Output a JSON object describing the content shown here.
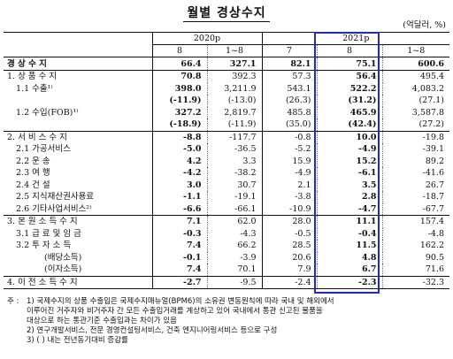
{
  "title": "월별 경상수지",
  "unit": "(억달러, %)",
  "header": {
    "year_2020": "2020p",
    "year_2021": "2021p",
    "months": [
      "8",
      "1~8",
      "7",
      "8",
      "1~8"
    ]
  },
  "rows": [
    {
      "label": "경 상 수 지",
      "values": [
        "66.4",
        "327.1",
        "82.1",
        "75.1",
        "600.6"
      ],
      "bold": true
    },
    {
      "label": "1. 상 품 수 지",
      "values": [
        "70.8",
        "392.3",
        "57.3",
        "56.4",
        "495.4"
      ]
    },
    {
      "label": "1.1 수출¹⁾",
      "values": [
        "398.0",
        "3,211.9",
        "543.1",
        "522.2",
        "4,083.2"
      ]
    },
    {
      "label": "",
      "values": [
        "(-11.9)",
        "(-13.0)",
        "(26.3)",
        "(31.2)",
        "(27.1)"
      ]
    },
    {
      "label": "1.2 수입(FOB)¹⁾",
      "values": [
        "327.2",
        "2,819.7",
        "485.8",
        "465.9",
        "3,587.8"
      ]
    },
    {
      "label": "",
      "values": [
        "(-18.9)",
        "(-11.9)",
        "(35.0)",
        "(42.4)",
        "(27.2)"
      ]
    },
    {
      "label": "2. 서 비 스 수 지",
      "values": [
        "-8.8",
        "-117.7",
        "-0.8",
        "10.0",
        "-19.8"
      ],
      "sec": true
    },
    {
      "label": "2.1 가공서비스",
      "values": [
        "-5.0",
        "-36.5",
        "-5.2",
        "-4.9",
        "-39.1"
      ]
    },
    {
      "label": "2.2 운        송",
      "values": [
        "4.2",
        "3.3",
        "15.9",
        "15.2",
        "89.2"
      ]
    },
    {
      "label": "2.3 여        행",
      "values": [
        "-4.2",
        "-38.2",
        "-4.9",
        "-6.1",
        "-41.6"
      ]
    },
    {
      "label": "2.4 건        설",
      "values": [
        "3.0",
        "30.7",
        "2.1",
        "3.5",
        "26.7"
      ]
    },
    {
      "label": "2.5 지식재산권사용료",
      "values": [
        "-1.1",
        "-19.1",
        "-3.8",
        "2.8",
        "-18.7"
      ]
    },
    {
      "label": "2.6 기타사업서비스²⁾",
      "values": [
        "-6.6",
        "-66.1",
        "-10.9",
        "-4.7",
        "-67.7"
      ]
    },
    {
      "label": "3. 본 원 소 득 수 지",
      "values": [
        "7.1",
        "62.0",
        "28.0",
        "11.1",
        "157.4"
      ],
      "sec": true
    },
    {
      "label": "3.1 급 료 및 임 금",
      "values": [
        "-0.3",
        "-4.3",
        "-0.5",
        "-0.4",
        "-4.8"
      ]
    },
    {
      "label": "3.2 투  자  소  득",
      "values": [
        "7.4",
        "66.2",
        "28.5",
        "11.5",
        "162.2"
      ]
    },
    {
      "label": "(배당소득)",
      "values": [
        "-0.1",
        "-3.9",
        "20.6",
        "4.8",
        "90.5"
      ]
    },
    {
      "label": "(이자소득)",
      "values": [
        "7.4",
        "70.1",
        "7.9",
        "6.7",
        "71.6"
      ]
    },
    {
      "label": "4. 이 전 소 득 수 지",
      "values": [
        "-2.7",
        "-9.5",
        "-2.4",
        "-2.3",
        "-32.3"
      ],
      "sec": true
    }
  ],
  "notes": [
    {
      "mark": "주 :",
      "text": "1) 국제수지의 상품 수출입은 국제수지매뉴얼(BPM6)의 소유권 변동원칙에 따라 국내 및 해외에서"
    },
    {
      "mark": "",
      "text": "   이루어진 거주자와 비거주자 간 모든 수출입거래를 계상하고 있어 국내에서 통관 신고된 물품을"
    },
    {
      "mark": "",
      "text": "   대상으로 하는 통관기준 수출입과는 차이가 있음"
    },
    {
      "mark": "",
      "text": "2) 연구개발서비스, 전문 경영컨설팅서비스, 건축 엔지니어링서비스 등으로 구성"
    },
    {
      "mark": "",
      "text": "3) (  ) 내는 전년동기대비 증감률"
    }
  ]
}
